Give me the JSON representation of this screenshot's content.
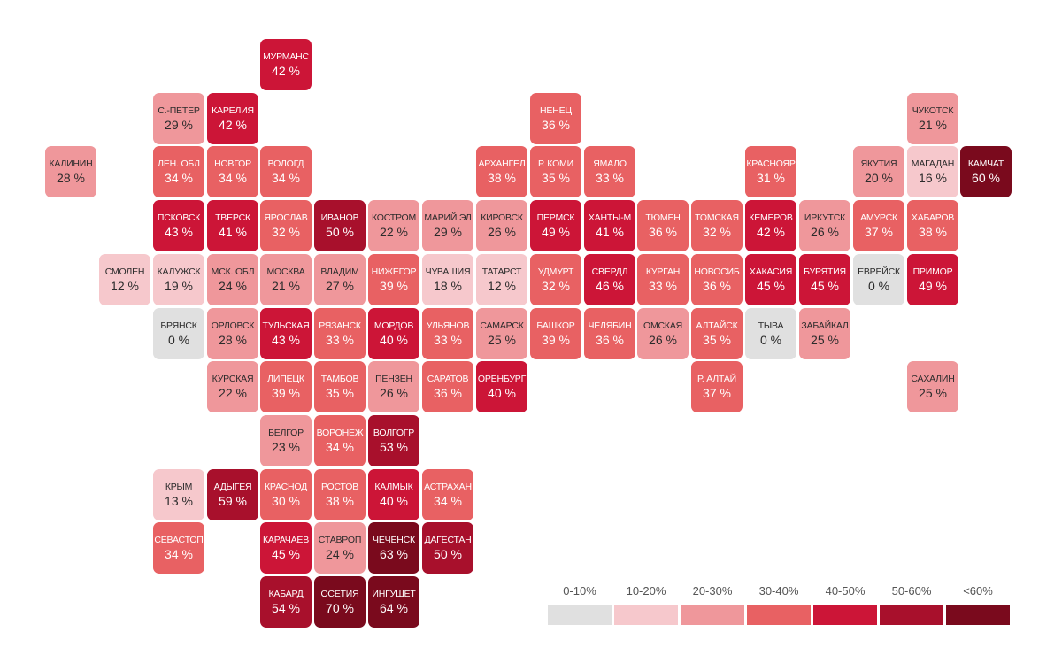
{
  "chart_data": {
    "type": "heatmap",
    "title": "",
    "value_unit": "%",
    "legend": {
      "placement": "bottom-right",
      "bins": [
        {
          "label": "0-10%",
          "color": "#e0e0e0"
        },
        {
          "label": "10-20%",
          "color": "#f6c8cc"
        },
        {
          "label": "20-30%",
          "color": "#ef979b"
        },
        {
          "label": "30-40%",
          "color": "#e86163"
        },
        {
          "label": "40-50%",
          "color": "#cc1537"
        },
        {
          "label": "50-60%",
          "color": "#a8102c"
        },
        {
          "label": "<60%",
          "color": "#7a0a1d"
        }
      ]
    },
    "grid": {
      "columns": 18,
      "rows": 11
    },
    "regions": [
      {
        "name": "МУРМАНС",
        "value": 42,
        "col": 4,
        "row": 0
      },
      {
        "name": "С.-ПЕТЕР",
        "value": 29,
        "col": 2,
        "row": 1
      },
      {
        "name": "КАРЕЛИЯ",
        "value": 42,
        "col": 3,
        "row": 1
      },
      {
        "name": "НЕНЕЦ",
        "value": 36,
        "col": 9,
        "row": 1
      },
      {
        "name": "ЧУКОТСК",
        "value": 21,
        "col": 16,
        "row": 1
      },
      {
        "name": "КАЛИНИН",
        "value": 28,
        "col": 0,
        "row": 2
      },
      {
        "name": "ЛЕН. ОБЛ",
        "value": 34,
        "col": 2,
        "row": 2
      },
      {
        "name": "НОВГОР",
        "value": 34,
        "col": 3,
        "row": 2
      },
      {
        "name": "ВОЛОГД",
        "value": 34,
        "col": 4,
        "row": 2
      },
      {
        "name": "АРХАНГЕЛ",
        "value": 38,
        "col": 8,
        "row": 2
      },
      {
        "name": "Р. КОМИ",
        "value": 35,
        "col": 9,
        "row": 2
      },
      {
        "name": "ЯМАЛО",
        "value": 33,
        "col": 10,
        "row": 2
      },
      {
        "name": "КРАСНОЯР",
        "value": 31,
        "col": 13,
        "row": 2
      },
      {
        "name": "ЯКУТИЯ",
        "value": 20,
        "col": 15,
        "row": 2
      },
      {
        "name": "МАГАДАН",
        "value": 16,
        "col": 16,
        "row": 2
      },
      {
        "name": "КАМЧАТ",
        "value": 60,
        "col": 17,
        "row": 2
      },
      {
        "name": "ПСКОВСК",
        "value": 43,
        "col": 2,
        "row": 3
      },
      {
        "name": "ТВЕРСК",
        "value": 41,
        "col": 3,
        "row": 3
      },
      {
        "name": "ЯРОСЛАВ",
        "value": 32,
        "col": 4,
        "row": 3
      },
      {
        "name": "ИВАНОВ",
        "value": 50,
        "col": 5,
        "row": 3
      },
      {
        "name": "КОСТРОМ",
        "value": 22,
        "col": 6,
        "row": 3
      },
      {
        "name": "МАРИЙ ЭЛ",
        "value": 29,
        "col": 7,
        "row": 3
      },
      {
        "name": "КИРОВСК",
        "value": 26,
        "col": 8,
        "row": 3
      },
      {
        "name": "ПЕРМСК",
        "value": 49,
        "col": 9,
        "row": 3
      },
      {
        "name": "ХАНТЫ-М",
        "value": 41,
        "col": 10,
        "row": 3
      },
      {
        "name": "ТЮМЕН",
        "value": 36,
        "col": 11,
        "row": 3
      },
      {
        "name": "ТОМСКАЯ",
        "value": 32,
        "col": 12,
        "row": 3
      },
      {
        "name": "КЕМЕРОВ",
        "value": 42,
        "col": 13,
        "row": 3
      },
      {
        "name": "ИРКУТСК",
        "value": 26,
        "col": 14,
        "row": 3
      },
      {
        "name": "АМУРСК",
        "value": 37,
        "col": 15,
        "row": 3
      },
      {
        "name": "ХАБАРОВ",
        "value": 38,
        "col": 16,
        "row": 3
      },
      {
        "name": "СМОЛЕН",
        "value": 12,
        "col": 1,
        "row": 4
      },
      {
        "name": "КАЛУЖСК",
        "value": 19,
        "col": 2,
        "row": 4
      },
      {
        "name": "МСК. ОБЛ",
        "value": 24,
        "col": 3,
        "row": 4
      },
      {
        "name": "МОСКВА",
        "value": 21,
        "col": 4,
        "row": 4
      },
      {
        "name": "ВЛАДИМ",
        "value": 27,
        "col": 5,
        "row": 4
      },
      {
        "name": "НИЖЕГОР",
        "value": 39,
        "col": 6,
        "row": 4
      },
      {
        "name": "ЧУВАШИЯ",
        "value": 18,
        "col": 7,
        "row": 4
      },
      {
        "name": "ТАТАРСТ",
        "value": 12,
        "col": 8,
        "row": 4
      },
      {
        "name": "УДМУРТ",
        "value": 32,
        "col": 9,
        "row": 4
      },
      {
        "name": "СВЕРДЛ",
        "value": 46,
        "col": 10,
        "row": 4
      },
      {
        "name": "КУРГАН",
        "value": 33,
        "col": 11,
        "row": 4
      },
      {
        "name": "НОВОСИБ",
        "value": 36,
        "col": 12,
        "row": 4
      },
      {
        "name": "ХАКАСИЯ",
        "value": 45,
        "col": 13,
        "row": 4
      },
      {
        "name": "БУРЯТИЯ",
        "value": 45,
        "col": 14,
        "row": 4
      },
      {
        "name": "ЕВРЕЙСК",
        "value": 0,
        "col": 15,
        "row": 4
      },
      {
        "name": "ПРИМОР",
        "value": 49,
        "col": 16,
        "row": 4
      },
      {
        "name": "БРЯНСК",
        "value": 0,
        "col": 2,
        "row": 5
      },
      {
        "name": "ОРЛОВСК",
        "value": 28,
        "col": 3,
        "row": 5
      },
      {
        "name": "ТУЛЬСКАЯ",
        "value": 43,
        "col": 4,
        "row": 5
      },
      {
        "name": "РЯЗАНСК",
        "value": 33,
        "col": 5,
        "row": 5
      },
      {
        "name": "МОРДОВ",
        "value": 40,
        "col": 6,
        "row": 5
      },
      {
        "name": "УЛЬЯНОВ",
        "value": 33,
        "col": 7,
        "row": 5
      },
      {
        "name": "САМАРСК",
        "value": 25,
        "col": 8,
        "row": 5
      },
      {
        "name": "БАШКОР",
        "value": 39,
        "col": 9,
        "row": 5
      },
      {
        "name": "ЧЕЛЯБИН",
        "value": 36,
        "col": 10,
        "row": 5
      },
      {
        "name": "ОМСКАЯ",
        "value": 26,
        "col": 11,
        "row": 5
      },
      {
        "name": "АЛТАЙСК",
        "value": 35,
        "col": 12,
        "row": 5
      },
      {
        "name": "ТЫВА",
        "value": 0,
        "col": 13,
        "row": 5
      },
      {
        "name": "ЗАБАЙКАЛ",
        "value": 25,
        "col": 14,
        "row": 5
      },
      {
        "name": "КУРСКАЯ",
        "value": 22,
        "col": 3,
        "row": 6
      },
      {
        "name": "ЛИПЕЦК",
        "value": 39,
        "col": 4,
        "row": 6
      },
      {
        "name": "ТАМБОВ",
        "value": 35,
        "col": 5,
        "row": 6
      },
      {
        "name": "ПЕНЗЕН",
        "value": 26,
        "col": 6,
        "row": 6
      },
      {
        "name": "САРАТОВ",
        "value": 36,
        "col": 7,
        "row": 6
      },
      {
        "name": "ОРЕНБУРГ",
        "value": 40,
        "col": 8,
        "row": 6
      },
      {
        "name": "Р. АЛТАЙ",
        "value": 37,
        "col": 12,
        "row": 6
      },
      {
        "name": "САХАЛИН",
        "value": 25,
        "col": 16,
        "row": 6
      },
      {
        "name": "БЕЛГОР",
        "value": 23,
        "col": 4,
        "row": 7
      },
      {
        "name": "ВОРОНЕЖ",
        "value": 34,
        "col": 5,
        "row": 7
      },
      {
        "name": "ВОЛГОГР",
        "value": 53,
        "col": 6,
        "row": 7
      },
      {
        "name": "КРЫМ",
        "value": 13,
        "col": 2,
        "row": 8
      },
      {
        "name": "АДЫГЕЯ",
        "value": 59,
        "col": 3,
        "row": 8
      },
      {
        "name": "КРАСНОД",
        "value": 30,
        "col": 4,
        "row": 8
      },
      {
        "name": "РОСТОВ",
        "value": 38,
        "col": 5,
        "row": 8
      },
      {
        "name": "КАЛМЫК",
        "value": 40,
        "col": 6,
        "row": 8
      },
      {
        "name": "АСТРАХАН",
        "value": 34,
        "col": 7,
        "row": 8
      },
      {
        "name": "СЕВАСТОП",
        "value": 34,
        "col": 2,
        "row": 9
      },
      {
        "name": "КАРАЧАЕВ",
        "value": 45,
        "col": 4,
        "row": 9
      },
      {
        "name": "СТАВРОП",
        "value": 24,
        "col": 5,
        "row": 9
      },
      {
        "name": "ЧЕЧЕНСК",
        "value": 63,
        "col": 6,
        "row": 9
      },
      {
        "name": "ДАГЕСТАН",
        "value": 50,
        "col": 7,
        "row": 9
      },
      {
        "name": "КАБАРД",
        "value": 54,
        "col": 4,
        "row": 10
      },
      {
        "name": "ОСЕТИЯ",
        "value": 70,
        "col": 5,
        "row": 10
      },
      {
        "name": "ИНГУШЕТ",
        "value": 64,
        "col": 6,
        "row": 10
      }
    ]
  }
}
